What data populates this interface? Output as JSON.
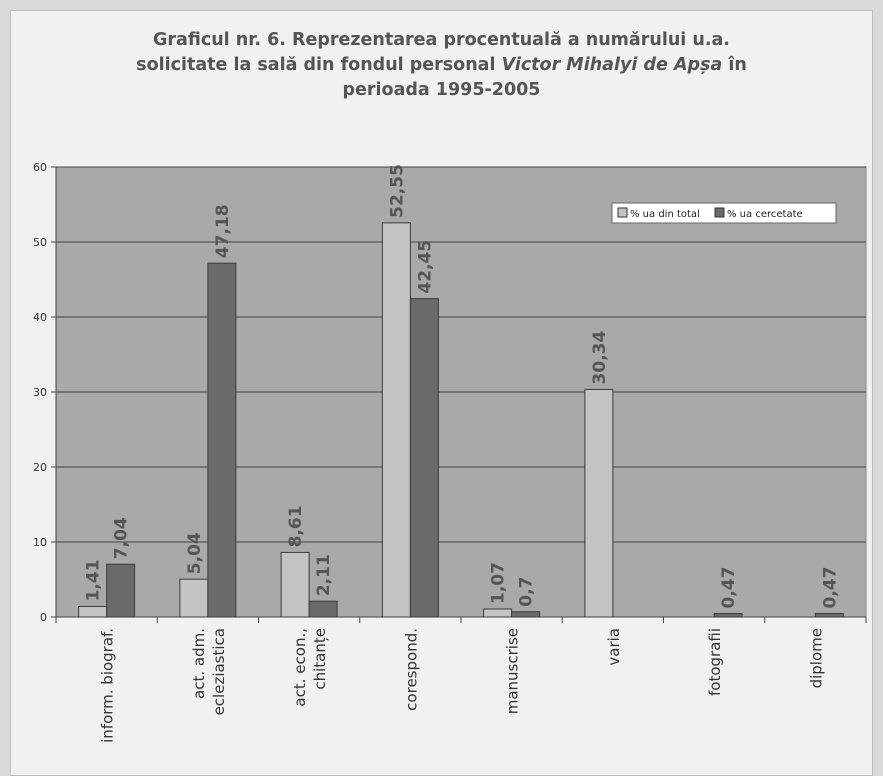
{
  "title": {
    "line1": "Graficul nr. 6. Reprezentarea procentuală a numărului u.a.",
    "line2a": "solicitate la sală din fondul personal ",
    "line2b": "Victor Mihalyi de Apșa",
    "line2c": " în",
    "line3": "perioada 1995-2005"
  },
  "colors": {
    "plot_bg": "#a9a9a7",
    "series1": "#c4c4c2",
    "series2": "#6a6a68",
    "text": "#555555"
  },
  "chart_data": {
    "type": "bar",
    "title": "Graficul nr. 6. Reprezentarea procentuală a numărului u.a. solicitate la sală din fondul personal Victor Mihalyi de Apșa în perioada 1995-2005",
    "categories": [
      "inform. biograf.",
      "act. adm. ecleziastica",
      "act. econ., chitanțe",
      "corespond.",
      "manuscrise",
      "varia",
      "fotografii",
      "diplome"
    ],
    "category_lines": [
      [
        "inform. biograf."
      ],
      [
        "act. adm.",
        "ecleziastica"
      ],
      [
        "act. econ.,",
        "chitanțe"
      ],
      [
        "corespond."
      ],
      [
        "manuscrise"
      ],
      [
        "varia"
      ],
      [
        "fotografii"
      ],
      [
        "diplome"
      ]
    ],
    "series": [
      {
        "name": "% ua din total",
        "values": [
          1.41,
          5.04,
          8.61,
          52.55,
          1.07,
          30.34,
          null,
          null
        ],
        "labels": [
          "1,41",
          "5,04",
          "8,61",
          "52,55",
          "1,07",
          "30,34",
          "",
          ""
        ]
      },
      {
        "name": "% ua cercetate",
        "values": [
          7.04,
          47.18,
          2.11,
          42.45,
          0.7,
          null,
          0.47,
          0.47
        ],
        "labels": [
          "7,04",
          "47,18",
          "2,11",
          "42,45",
          "0,7",
          "",
          "0,47",
          "0,47"
        ]
      }
    ],
    "yticks": [
      0,
      10,
      20,
      30,
      40,
      50,
      60
    ],
    "ylim": [
      0,
      60
    ],
    "grid": true,
    "legend_position": "top-right",
    "xlabel": "",
    "ylabel": ""
  }
}
